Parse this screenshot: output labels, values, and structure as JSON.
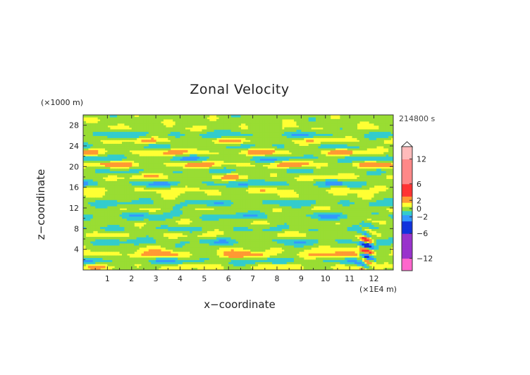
{
  "chart_data": {
    "type": "heatmap",
    "title": "Zonal Velocity",
    "xlabel": "x−coordinate",
    "ylabel": "z−coordinate",
    "x_unit": "(×1E4 m)",
    "y_unit": "(×1000 m)",
    "time_label": "214800 s",
    "x_ticks": [
      "1",
      "2",
      "3",
      "4",
      "5",
      "6",
      "7",
      "8",
      "9",
      "10",
      "11",
      "12"
    ],
    "y_ticks": [
      "4",
      "8",
      "12",
      "16",
      "20",
      "24",
      "28"
    ],
    "xlim": [
      0,
      12.8
    ],
    "ylim": [
      0,
      30
    ],
    "colorbar": {
      "tick_labels": [
        "12",
        "6",
        "2",
        "0",
        "−2",
        "−6",
        "−12"
      ],
      "tick_values": [
        12,
        6,
        2,
        0,
        -2,
        -6,
        -12
      ],
      "range": [
        -15,
        15
      ]
    },
    "field_description_bands": [
      {
        "z": 29.0,
        "v": 0.2
      },
      {
        "z": 27.5,
        "v": 0.6
      },
      {
        "z": 26.2,
        "v": -1.5
      },
      {
        "z": 25.0,
        "v": 1.8
      },
      {
        "z": 24.0,
        "v": -1.2
      },
      {
        "z": 22.8,
        "v": 2.2
      },
      {
        "z": 21.5,
        "v": -2.0
      },
      {
        "z": 20.5,
        "v": 2.5
      },
      {
        "z": 19.2,
        "v": -1.0
      },
      {
        "z": 18.0,
        "v": 1.6
      },
      {
        "z": 16.8,
        "v": -1.8
      },
      {
        "z": 15.5,
        "v": 1.2
      },
      {
        "z": 14.2,
        "v": 0.4
      },
      {
        "z": 13.0,
        "v": -1.3
      },
      {
        "z": 11.8,
        "v": 0.7
      },
      {
        "z": 10.5,
        "v": -1.6
      },
      {
        "z": 9.2,
        "v": 0.5
      },
      {
        "z": 8.0,
        "v": -0.9
      },
      {
        "z": 6.8,
        "v": 1.0
      },
      {
        "z": 5.5,
        "v": -1.4
      },
      {
        "z": 4.2,
        "v": 0.6
      },
      {
        "z": 3.0,
        "v": 2.4
      },
      {
        "z": 1.8,
        "v": -1.7
      },
      {
        "z": 0.6,
        "v": 1.5
      }
    ],
    "colors": {
      "pink": "#ff66cc",
      "purple": "#9933cc",
      "dark_blue": "#1133dd",
      "blue": "#3399ff",
      "cyan": "#33cccc",
      "green": "#99dd33",
      "yellow": "#ffff33",
      "orange": "#ff9933",
      "red": "#ff3333",
      "light_red": "#ff8888",
      "light_pink": "#ffbbbb"
    }
  }
}
